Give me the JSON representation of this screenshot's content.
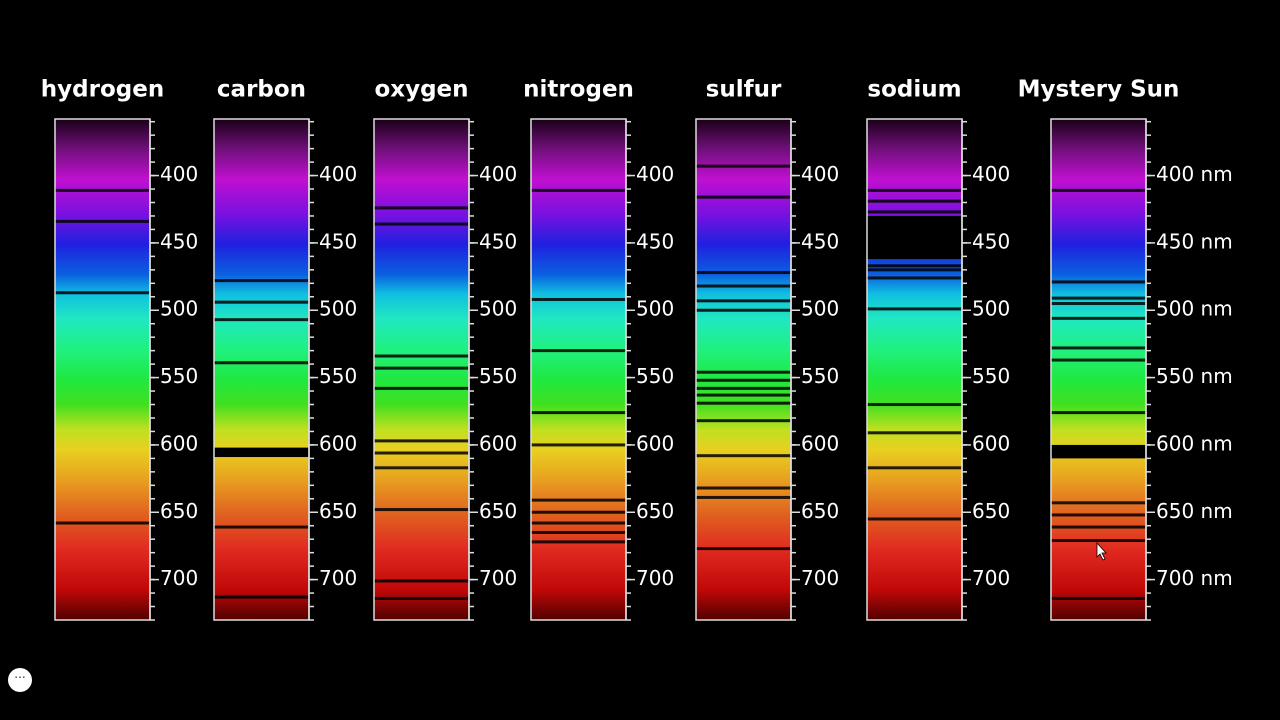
{
  "chart_data": [
    {
      "type": "spectrum",
      "title": "hydrogen",
      "ylim": [
        358,
        730
      ],
      "yticks": [
        400,
        450,
        500,
        550,
        600,
        650,
        700
      ],
      "lines": [
        411,
        434,
        487,
        658
      ]
    },
    {
      "type": "spectrum",
      "title": "carbon",
      "ylim": [
        358,
        730
      ],
      "yticks": [
        400,
        450,
        500,
        550,
        600,
        650,
        700
      ],
      "lines": [
        478,
        494,
        507,
        539,
        661,
        713
      ],
      "bands": [
        [
          602,
          609
        ]
      ]
    },
    {
      "type": "spectrum",
      "title": "oxygen",
      "ylim": [
        358,
        730
      ],
      "yticks": [
        400,
        450,
        500,
        550,
        600,
        650,
        700
      ],
      "lines": [
        424,
        436,
        534,
        543,
        558,
        597,
        606,
        617,
        648,
        701,
        714
      ]
    },
    {
      "type": "spectrum",
      "title": "nitrogen",
      "ylim": [
        358,
        730
      ],
      "yticks": [
        400,
        450,
        500,
        550,
        600,
        650,
        700
      ],
      "lines": [
        411,
        492,
        530,
        576,
        600,
        641,
        650,
        658,
        665,
        672
      ]
    },
    {
      "type": "spectrum",
      "title": "sulfur",
      "ylim": [
        358,
        730
      ],
      "yticks": [
        400,
        450,
        500,
        550,
        600,
        650,
        700
      ],
      "lines": [
        393,
        416,
        472,
        482,
        493,
        500,
        546,
        552,
        558,
        563,
        569,
        582,
        608,
        632,
        639,
        677
      ]
    },
    {
      "type": "spectrum",
      "title": "sodium",
      "ylim": [
        358,
        730
      ],
      "yticks": [
        400,
        450,
        500,
        550,
        600,
        650,
        700
      ],
      "lines": [
        411,
        419,
        427,
        467,
        470,
        476,
        499,
        570,
        591,
        617,
        655
      ],
      "bands": [
        [
          430,
          462
        ]
      ]
    },
    {
      "type": "spectrum",
      "title": "Mystery Sun",
      "ylim": [
        358,
        730
      ],
      "yticks": [
        {
          "value": 400,
          "label": "400 nm"
        },
        {
          "value": 450,
          "label": "450 nm"
        },
        {
          "value": 500,
          "label": "500 nm"
        },
        {
          "value": 550,
          "label": "550 nm"
        },
        {
          "value": 600,
          "label": "600 nm"
        },
        {
          "value": 650,
          "label": "650 nm"
        },
        {
          "value": 700,
          "label": "700 nm"
        }
      ],
      "lines": [
        411,
        479,
        491,
        495,
        506,
        528,
        537,
        576,
        643,
        652,
        661,
        671,
        714
      ],
      "bands": [
        [
          600,
          610
        ]
      ]
    }
  ]
}
